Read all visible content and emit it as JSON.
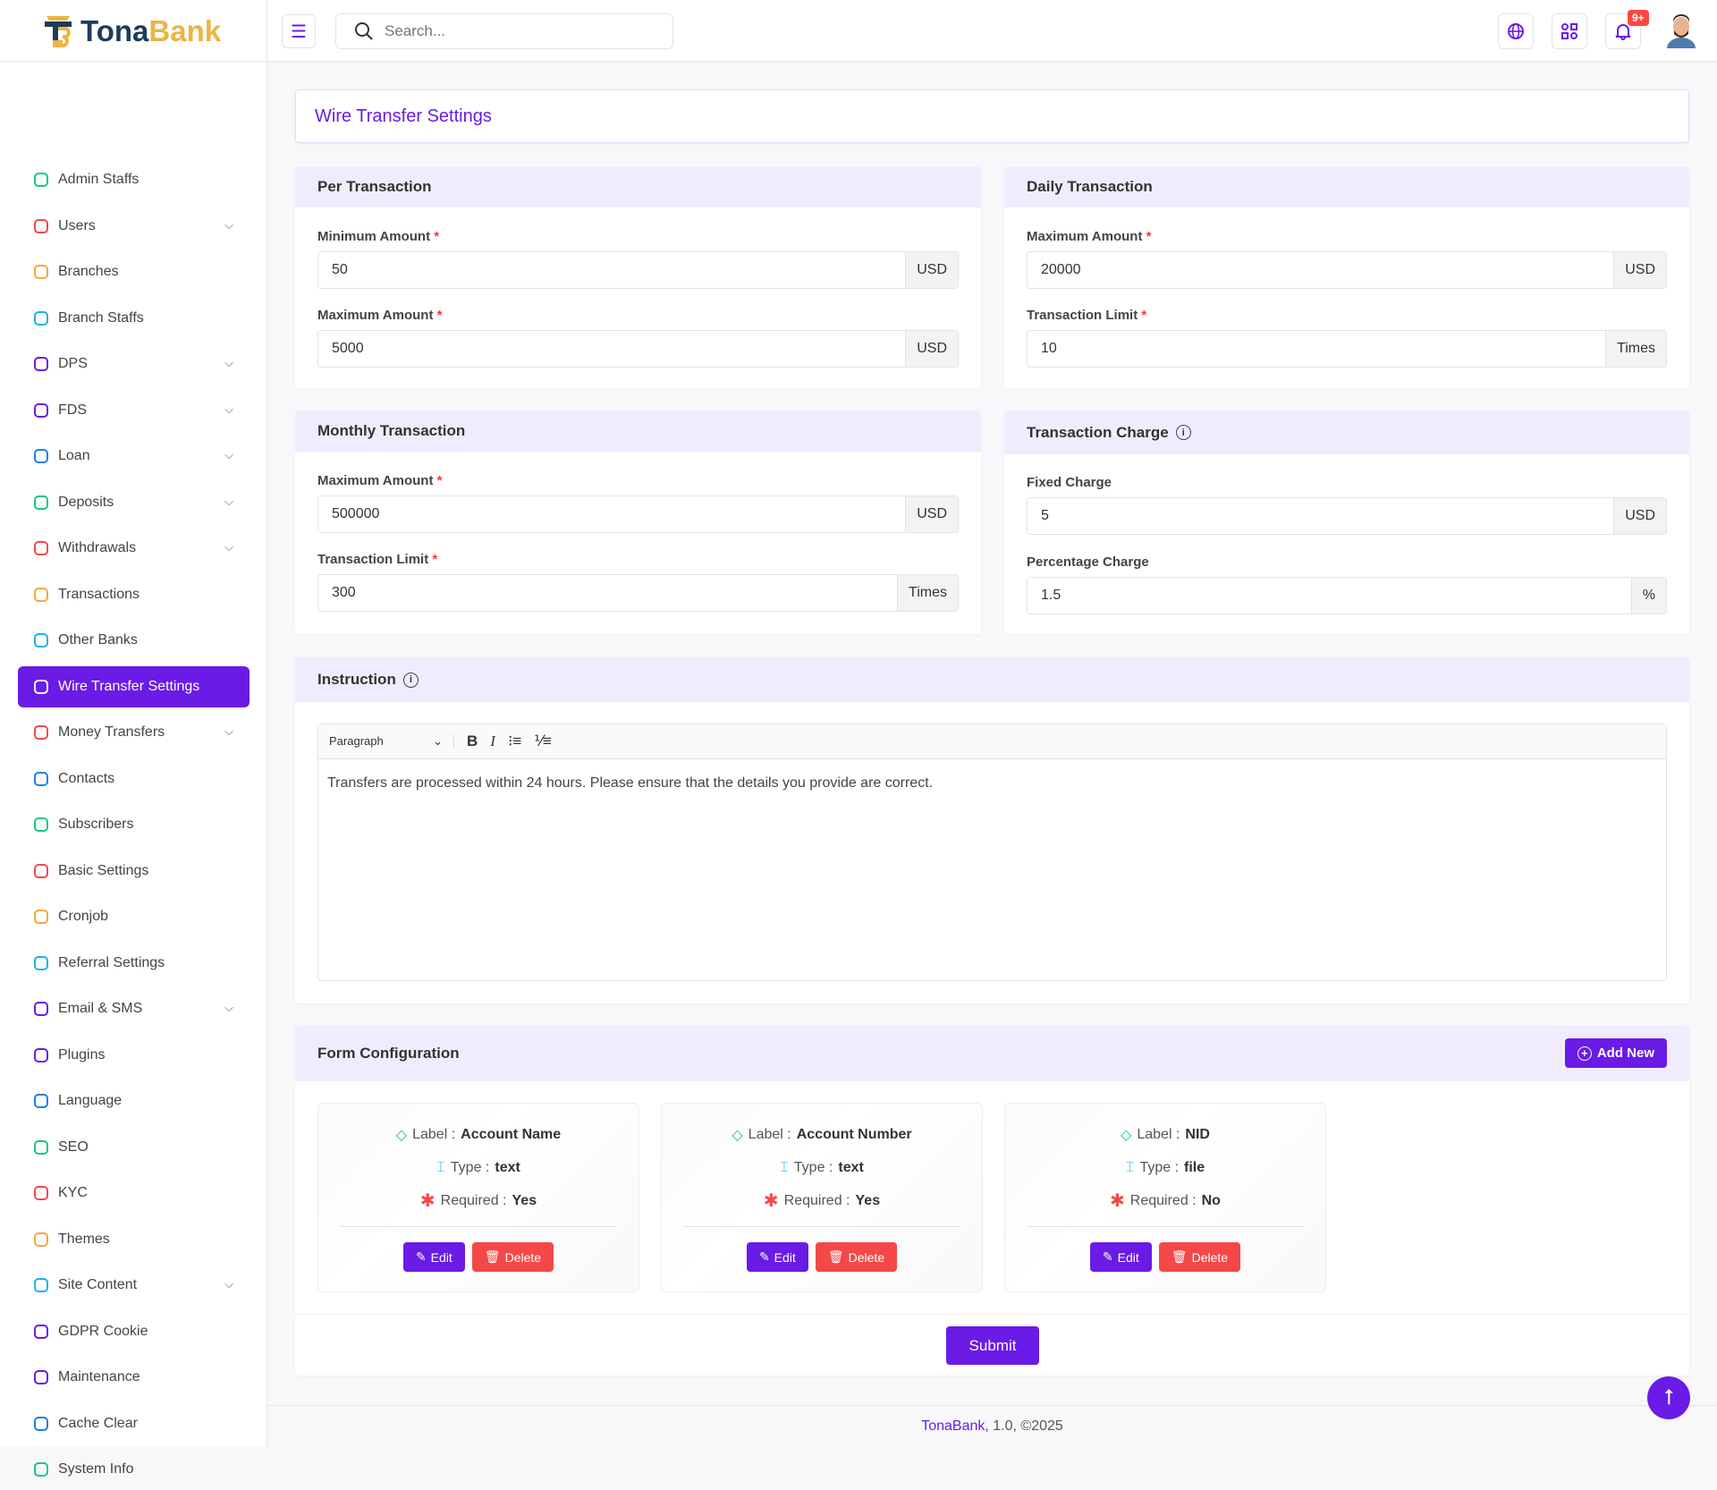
{
  "brand": {
    "name1": "Tona",
    "name2": "Bank"
  },
  "header": {
    "search_placeholder": "Search...",
    "notification_count": "9+"
  },
  "sidebar": {
    "items": [
      {
        "label": "Admin Staffs",
        "icon": "user-cog",
        "color": "#14c97a",
        "chev": false
      },
      {
        "label": "Users",
        "icon": "users",
        "color": "#f44848",
        "chev": true
      },
      {
        "label": "Branches",
        "icon": "sitemap",
        "color": "#f7a738",
        "chev": false
      },
      {
        "label": "Branch Staffs",
        "icon": "users-group",
        "color": "#1ab0f0",
        "chev": false
      },
      {
        "label": "DPS",
        "icon": "bag",
        "color": "#6a1be6",
        "chev": true
      },
      {
        "label": "FDS",
        "icon": "building",
        "color": "#6a1be6",
        "chev": true
      },
      {
        "label": "Loan",
        "icon": "money",
        "color": "#1a7ef0",
        "chev": true
      },
      {
        "label": "Deposits",
        "icon": "wallet",
        "color": "#14c97a",
        "chev": true
      },
      {
        "label": "Withdrawals",
        "icon": "cash",
        "color": "#f44848",
        "chev": true
      },
      {
        "label": "Transactions",
        "icon": "exchange",
        "color": "#f7a738",
        "chev": false
      },
      {
        "label": "Other Banks",
        "icon": "bank",
        "color": "#1ab0f0",
        "chev": false
      },
      {
        "label": "Wire Transfer Settings",
        "icon": "globe-gear",
        "color": "#ffffff",
        "chev": false,
        "active": true
      },
      {
        "label": "Money Transfers",
        "icon": "arrows",
        "color": "#f44848",
        "chev": true
      },
      {
        "label": "Contacts",
        "icon": "address-book",
        "color": "#1a7ef0",
        "chev": false
      },
      {
        "label": "Subscribers",
        "icon": "message",
        "color": "#14c97a",
        "chev": false
      },
      {
        "label": "Basic Settings",
        "icon": "gear",
        "color": "#f44848",
        "chev": false
      },
      {
        "label": "Cronjob",
        "icon": "clock",
        "color": "#f7a738",
        "chev": false
      },
      {
        "label": "Referral Settings",
        "icon": "share",
        "color": "#1ab0f0",
        "chev": false
      },
      {
        "label": "Email & SMS",
        "icon": "mail",
        "color": "#6a1be6",
        "chev": true
      },
      {
        "label": "Plugins",
        "icon": "plug",
        "color": "#6a1be6",
        "chev": false
      },
      {
        "label": "Language",
        "icon": "translate",
        "color": "#1a7ef0",
        "chev": false
      },
      {
        "label": "SEO",
        "icon": "seo",
        "color": "#14c97a",
        "chev": false
      },
      {
        "label": "KYC",
        "icon": "scan-face",
        "color": "#f44848",
        "chev": false
      },
      {
        "label": "Themes",
        "icon": "layout",
        "color": "#f7a738",
        "chev": false
      },
      {
        "label": "Site Content",
        "icon": "grid",
        "color": "#1ab0f0",
        "chev": true
      },
      {
        "label": "GDPR Cookie",
        "icon": "cookie",
        "color": "#6a1be6",
        "chev": false
      },
      {
        "label": "Maintenance",
        "icon": "tools",
        "color": "#6a1be6",
        "chev": false
      },
      {
        "label": "Cache Clear",
        "icon": "eraser",
        "color": "#1a7ef0",
        "chev": false
      },
      {
        "label": "System Info",
        "icon": "info",
        "color": "#14c97a",
        "chev": false
      }
    ]
  },
  "page": {
    "title": "Wire Transfer Settings"
  },
  "per_transaction": {
    "title": "Per Transaction",
    "min_label": "Minimum Amount",
    "min_value": "50",
    "min_suffix": "USD",
    "max_label": "Maximum Amount",
    "max_value": "5000",
    "max_suffix": "USD"
  },
  "daily_transaction": {
    "title": "Daily Transaction",
    "max_label": "Maximum Amount",
    "max_value": "20000",
    "max_suffix": "USD",
    "limit_label": "Transaction Limit",
    "limit_value": "10",
    "limit_suffix": "Times"
  },
  "monthly_transaction": {
    "title": "Monthly Transaction",
    "max_label": "Maximum Amount",
    "max_value": "500000",
    "max_suffix": "USD",
    "limit_label": "Transaction Limit",
    "limit_value": "300",
    "limit_suffix": "Times"
  },
  "transaction_charge": {
    "title": "Transaction Charge",
    "fixed_label": "Fixed Charge",
    "fixed_value": "5",
    "fixed_suffix": "USD",
    "percent_label": "Percentage Charge",
    "percent_value": "1.5",
    "percent_suffix": "%"
  },
  "instruction": {
    "title": "Instruction",
    "format": "Paragraph",
    "text": "Transfers are processed within 24 hours. Please ensure that the details you provide are correct."
  },
  "form_config": {
    "title": "Form Configuration",
    "add_label": "Add New",
    "label_key": "Label :",
    "type_key": "Type :",
    "required_key": "Required :",
    "edit_label": "Edit",
    "delete_label": "Delete",
    "fields": [
      {
        "label": "Account Name",
        "type": "text",
        "required": "Yes"
      },
      {
        "label": "Account Number",
        "type": "text",
        "required": "Yes"
      },
      {
        "label": "NID",
        "type": "file",
        "required": "No"
      }
    ]
  },
  "submit_label": "Submit",
  "footer": {
    "brand": "TonaBank",
    "rest": ", 1.0, ©2025"
  },
  "colors": {
    "accent": "#6a1be6",
    "danger": "#f44848",
    "header_bg": "#f0ecfd"
  }
}
